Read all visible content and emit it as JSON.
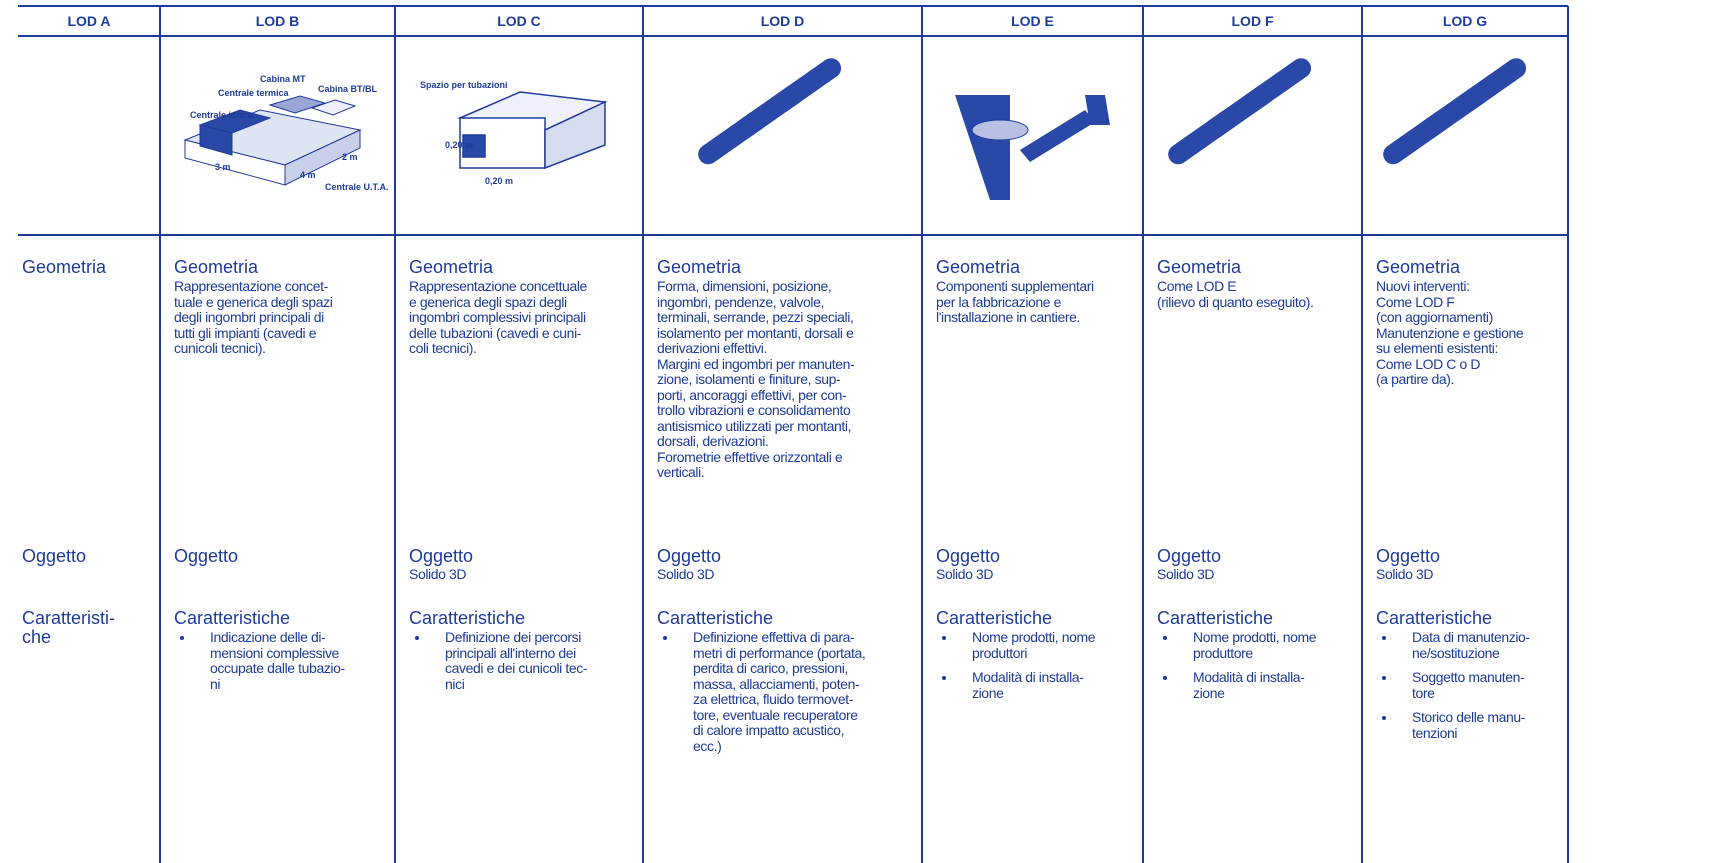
{
  "table": {
    "headers": [
      "LOD A",
      "LOD B",
      "LOD C",
      "LOD D",
      "LOD E",
      "LOD F",
      "LOD G"
    ],
    "columns": [
      {
        "geometry_title": "Geometria",
        "geometry_lines": [],
        "object_title": "Oggetto",
        "object_text": null,
        "features_title": [
          "Caratteristi-",
          "che"
        ],
        "features_items": []
      },
      {
        "geometry_title": "Geometria",
        "geometry_lines": [
          "Rappresentazione concet-",
          "tuale e generica degli spazi",
          "degli ingombri principali di",
          "tutti gli impianti (cavedi e",
          "cunicoli tecnici)."
        ],
        "object_title": "Oggetto",
        "object_text": null,
        "features_title": [
          "Caratteristiche"
        ],
        "features_items": [
          [
            "Indicazione delle di-",
            "mensioni complessive",
            "occupate dalle tubazio-",
            "ni"
          ]
        ]
      },
      {
        "geometry_title": "Geometria",
        "geometry_lines": [
          "Rappresentazione concettuale",
          "e generica degli spazi degli",
          "ingombri complessivi principali",
          "delle tubazioni (cavedi e cuni-",
          "coli tecnici)."
        ],
        "object_title": "Oggetto",
        "object_text": "Solido 3D",
        "features_title": [
          "Caratteristiche"
        ],
        "features_items": [
          [
            "Definizione dei percorsi",
            "principali all'interno dei",
            "cavedi e dei cunicoli tec-",
            "nici"
          ]
        ]
      },
      {
        "geometry_title": "Geometria",
        "geometry_lines": [
          "Forma, dimensioni, posizione,",
          "ingombri, pendenze, valvole,",
          "terminali, serrande, pezzi speciali,",
          "isolamento per montanti, dorsali e",
          "derivazioni effettivi.",
          "Margini ed ingombri per manuten-",
          "zione, isolamenti e finiture, sup-",
          "porti, ancoraggi effettivi, per con-",
          "trollo vibrazioni e consolidamento",
          "antisismico utilizzati per montanti,",
          "dorsali, derivazioni.",
          "Forometrie effettive orizzontali e",
          "verticali."
        ],
        "object_title": "Oggetto",
        "object_text": "Solido 3D",
        "features_title": [
          "Caratteristiche"
        ],
        "features_items": [
          [
            "Definizione effettiva di para-",
            "metri di performance (portata,",
            "perdita di carico, pressioni,",
            "massa, allacciamenti, poten-",
            "za elettrica, fluido termovet-",
            "tore, eventuale recuperatore",
            "di calore impatto acustico,",
            "ecc.)"
          ]
        ]
      },
      {
        "geometry_title": "Geometria",
        "geometry_lines": [
          "Componenti supplementari",
          "per la fabbricazione e",
          "l'installazione in cantiere."
        ],
        "object_title": "Oggetto",
        "object_text": "Solido 3D",
        "features_title": [
          "Caratteristiche"
        ],
        "features_items": [
          [
            "Nome prodotti, nome",
            "produttori"
          ],
          [
            "Modalità di installa-",
            "zione"
          ]
        ]
      },
      {
        "geometry_title": "Geometria",
        "geometry_lines": [
          "Come LOD E",
          "(rilievo di quanto eseguito)."
        ],
        "object_title": "Oggetto",
        "object_text": "Solido 3D",
        "features_title": [
          "Caratteristiche"
        ],
        "features_items": [
          [
            "Nome prodotti, nome",
            "produttore"
          ],
          [
            "Modalità di installa-",
            "zione"
          ]
        ]
      },
      {
        "geometry_title": "Geometria",
        "geometry_lines": [
          "Nuovi interventi:",
          "Come LOD F",
          "(con aggiornamenti)",
          "Manutenzione e gestione",
          "su elementi esistenti:",
          "Come LOD C o D",
          "(a partire da)."
        ],
        "object_title": "Oggetto",
        "object_text": "Solido 3D",
        "features_title": [
          "Caratteristiche"
        ],
        "features_items": [
          [
            "Data di manutenzio-",
            "ne/sostituzione"
          ],
          [
            "Soggetto manuten-",
            "tore"
          ],
          [
            "Storico delle manu-",
            "tenzioni"
          ]
        ]
      }
    ]
  },
  "illustrations": {
    "lod_b": {
      "labels": [
        "Cabina MT",
        "Cabina BT/BL",
        "Centrale termica",
        "Centrale idrica",
        "3 m",
        "4 m",
        "2 m",
        "Centrale U.T.A."
      ]
    },
    "lod_c": {
      "labels": [
        "Spazio per tubazioni",
        "0,20 m",
        "0,20 m"
      ]
    }
  }
}
